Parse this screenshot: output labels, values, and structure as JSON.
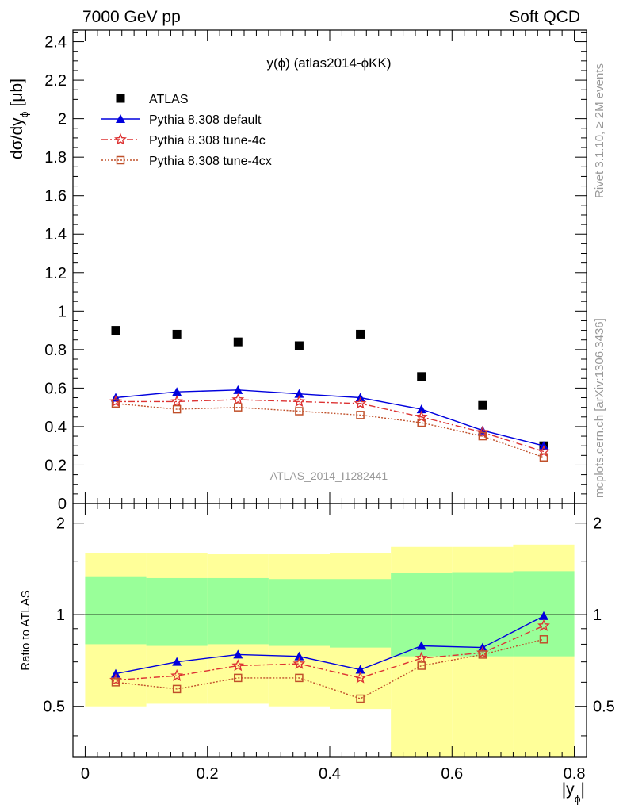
{
  "header": {
    "energy": "7000 GeV pp",
    "category": "Soft QCD"
  },
  "side": {
    "rivet": "Rivet 3.1.10, ≥ 2M events",
    "mcplots": "mcplots.cern.ch [arXiv:1306.3436]"
  },
  "colors": {
    "atlas": "#000000",
    "default": "#0000dd",
    "tune4c": "#dd3333",
    "tune4cx": "#c0502a",
    "band_outer": "#ffff99",
    "band_inner": "#99ff99",
    "watermark": "#999999"
  },
  "chart_data": [
    {
      "type": "scatter",
      "title": "y(ϕ) (atlas2014-ϕKK)",
      "xlabel": "",
      "ylabel": "dσ/dy",
      "ylabel_sub": "ϕ",
      "ylabel_unit": "[μb]",
      "watermark": "ATLAS_2014_I1282441",
      "xlim": [
        -0.02,
        0.82
      ],
      "ylim": [
        0,
        2.46
      ],
      "yticks": [
        "0",
        "0.2",
        "0.4",
        "0.6",
        "0.8",
        "1",
        "1.2",
        "1.4",
        "1.6",
        "1.8",
        "2",
        "2.2",
        "2.4"
      ],
      "legend_position": "top-left",
      "x": [
        0.05,
        0.15,
        0.25,
        0.35,
        0.45,
        0.55,
        0.65,
        0.75
      ],
      "series": [
        {
          "name": "ATLAS",
          "marker": "square",
          "values": [
            0.9,
            0.88,
            0.84,
            0.82,
            0.88,
            0.66,
            0.51,
            0.3
          ]
        },
        {
          "name": "Pythia 8.308 default",
          "marker": "triangle",
          "values": [
            0.55,
            0.58,
            0.59,
            0.57,
            0.55,
            0.49,
            0.38,
            0.3
          ]
        },
        {
          "name": "Pythia 8.308 tune-4c",
          "marker": "star",
          "values": [
            0.53,
            0.53,
            0.54,
            0.53,
            0.52,
            0.45,
            0.37,
            0.27
          ]
        },
        {
          "name": "Pythia 8.308 tune-4cx",
          "marker": "open-square",
          "values": [
            0.52,
            0.49,
            0.5,
            0.48,
            0.46,
            0.42,
            0.35,
            0.24
          ]
        }
      ]
    },
    {
      "type": "line",
      "title": "",
      "xlabel": "|y",
      "xlabel_sub": "ϕ",
      "xlabel_close": "|",
      "ylabel": "Ratio to ATLAS",
      "xlim": [
        -0.02,
        0.82
      ],
      "ylim": [
        0.34,
        2.32
      ],
      "xticks": [
        "0",
        "0.2",
        "0.4",
        "0.6",
        "0.8"
      ],
      "yticks": [
        "0.5",
        "1",
        "2"
      ],
      "bins": [
        {
          "lo": 0.0,
          "hi": 0.1,
          "band_outer": [
            0.5,
            1.59
          ],
          "band_inner": [
            0.8,
            1.33
          ]
        },
        {
          "lo": 0.1,
          "hi": 0.2,
          "band_outer": [
            0.51,
            1.59
          ],
          "band_inner": [
            0.79,
            1.32
          ]
        },
        {
          "lo": 0.2,
          "hi": 0.3,
          "band_outer": [
            0.51,
            1.58
          ],
          "band_inner": [
            0.8,
            1.32
          ]
        },
        {
          "lo": 0.3,
          "hi": 0.4,
          "band_outer": [
            0.5,
            1.58
          ],
          "band_inner": [
            0.79,
            1.31
          ]
        },
        {
          "lo": 0.4,
          "hi": 0.5,
          "band_outer": [
            0.49,
            1.59
          ],
          "band_inner": [
            0.78,
            1.31
          ]
        },
        {
          "lo": 0.5,
          "hi": 0.6,
          "band_outer": [
            0.34,
            1.67
          ],
          "band_inner": [
            0.73,
            1.37
          ]
        },
        {
          "lo": 0.6,
          "hi": 0.7,
          "band_outer": [
            0.34,
            1.67
          ],
          "band_inner": [
            0.73,
            1.38
          ]
        },
        {
          "lo": 0.7,
          "hi": 0.8,
          "band_outer": [
            0.34,
            1.7
          ],
          "band_inner": [
            0.73,
            1.39
          ]
        }
      ],
      "reference": 1.0,
      "x": [
        0.05,
        0.15,
        0.25,
        0.35,
        0.45,
        0.55,
        0.65,
        0.75
      ],
      "series": [
        {
          "name": "Pythia 8.308 default",
          "values": [
            0.64,
            0.7,
            0.74,
            0.73,
            0.66,
            0.79,
            0.78,
            0.99
          ]
        },
        {
          "name": "Pythia 8.308 tune-4c",
          "values": [
            0.61,
            0.63,
            0.68,
            0.69,
            0.62,
            0.72,
            0.75,
            0.92
          ]
        },
        {
          "name": "Pythia 8.308 tune-4cx",
          "values": [
            0.6,
            0.57,
            0.62,
            0.62,
            0.53,
            0.68,
            0.74,
            0.83
          ]
        }
      ]
    }
  ]
}
